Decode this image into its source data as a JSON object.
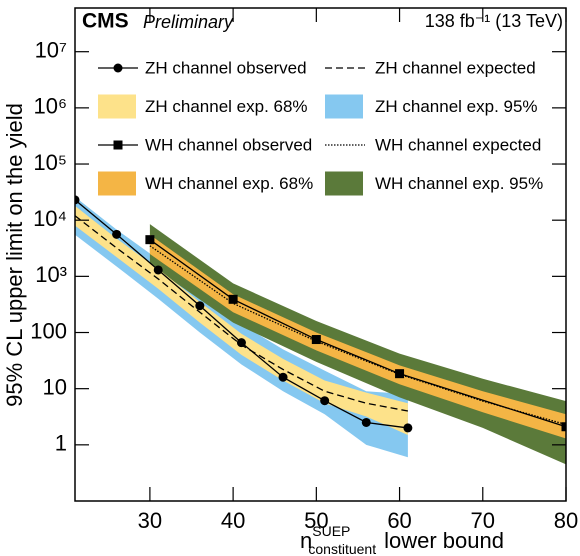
{
  "chart_data": {
    "type": "line",
    "title": "CMS",
    "subtitle": "Preliminary",
    "lumi": "138 fb⁻¹ (13 TeV)",
    "ylabel": "95% CL upper limit on the yield",
    "xlabel": {
      "base": "n",
      "sup": "SUEP",
      "sub": "constituent",
      "rest": "lower bound"
    },
    "log_y": true,
    "xlim": [
      21,
      80
    ],
    "ylim": [
      0.1,
      60000000
    ],
    "xticks": [
      30,
      40,
      50,
      60,
      70,
      80
    ],
    "yticks": [
      1,
      10,
      100,
      {
        "value": 1000,
        "label": "10³"
      },
      {
        "value": 10000,
        "label": "10⁴"
      },
      {
        "value": 100000,
        "label": "10⁵"
      },
      {
        "value": 1000000,
        "label": "10⁶"
      },
      {
        "value": 10000000,
        "label": "10⁷"
      }
    ],
    "series": [
      {
        "name": "ZH channel observed",
        "kind": "line",
        "color": "#000000",
        "dash": "solid",
        "marker": "circle",
        "x": [
          21,
          26,
          31,
          36,
          41,
          46,
          51,
          56,
          61
        ],
        "values": [
          23000,
          5600,
          1300,
          300,
          66,
          16,
          6.1,
          2.5,
          2.0
        ]
      },
      {
        "name": "ZH channel expected",
        "kind": "line",
        "color": "#000000",
        "dash": "dashed",
        "x": [
          21,
          26,
          31,
          36,
          41,
          46,
          51,
          56,
          61
        ],
        "values": [
          12000,
          3200,
          900,
          230,
          60,
          22,
          9,
          5.5,
          4
        ]
      },
      {
        "name": "ZH channel exp. 68%",
        "kind": "band",
        "color": "#fde28a",
        "x": [
          21,
          26,
          31,
          36,
          41,
          46,
          51,
          56,
          61
        ],
        "lower": [
          8000,
          2200,
          600,
          150,
          40,
          14,
          5.5,
          3.2,
          1.5
        ],
        "upper": [
          18000,
          4700,
          1350,
          350,
          95,
          34,
          14,
          8.5,
          5.5
        ]
      },
      {
        "name": "ZH channel exp. 95%",
        "kind": "band",
        "color": "#85c8f0",
        "x": [
          21,
          26,
          31,
          36,
          41,
          46,
          51,
          56,
          61
        ],
        "lower": [
          5500,
          1500,
          400,
          100,
          27,
          9,
          3.5,
          1.0,
          0.6
        ],
        "upper": [
          26000,
          6800,
          2000,
          520,
          140,
          50,
          21,
          9,
          8
        ]
      },
      {
        "name": "WH channel observed",
        "kind": "line",
        "color": "#000000",
        "dash": "solid",
        "marker": "square",
        "x": [
          30,
          40,
          50,
          60,
          80
        ],
        "values": [
          4500,
          390,
          75,
          18.5,
          2.1
        ]
      },
      {
        "name": "WH channel expected",
        "kind": "line",
        "color": "#000000",
        "dash": "dotted",
        "x": [
          30,
          40,
          50,
          60,
          70,
          80
        ],
        "values": [
          3500,
          330,
          70,
          18,
          6,
          2.3
        ]
      },
      {
        "name": "WH channel exp. 68%",
        "kind": "band",
        "color": "#f4b545",
        "x": [
          30,
          40,
          50,
          60,
          70,
          80
        ],
        "lower": [
          2500,
          230,
          48,
          12,
          3.8,
          1.3
        ],
        "upper": [
          5500,
          480,
          100,
          26,
          9,
          3.5
        ]
      },
      {
        "name": "WH channel exp. 95%",
        "kind": "band",
        "color": "#5b7a3a",
        "x": [
          30,
          40,
          50,
          60,
          70,
          80
        ],
        "lower": [
          1600,
          150,
          30,
          7,
          2,
          0.45
        ],
        "upper": [
          8500,
          750,
          160,
          42,
          15,
          6
        ]
      }
    ]
  }
}
